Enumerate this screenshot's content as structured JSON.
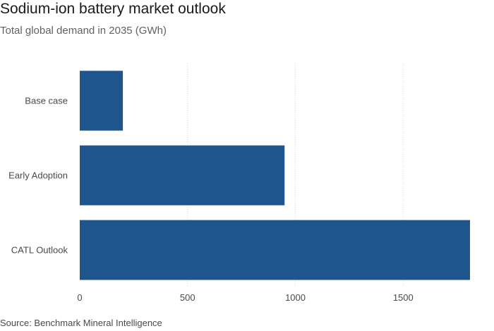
{
  "chart_data": {
    "type": "bar",
    "orientation": "horizontal",
    "title": "Sodium-ion battery market outlook",
    "subtitle": "Total global demand in 2035 (GWh)",
    "source": "Source: Benchmark Mineral Intelligence",
    "categories": [
      "Base case",
      "Early Adoption",
      "CATL Outlook"
    ],
    "values": [
      200,
      950,
      1810
    ],
    "x_ticks": [
      0,
      500,
      1000,
      1500
    ],
    "x_tick_labels": [
      "0",
      "500",
      "1000",
      "1500"
    ],
    "xlim": [
      0,
      1810
    ],
    "grid": "vertical",
    "bar_color": "#1f558d"
  }
}
